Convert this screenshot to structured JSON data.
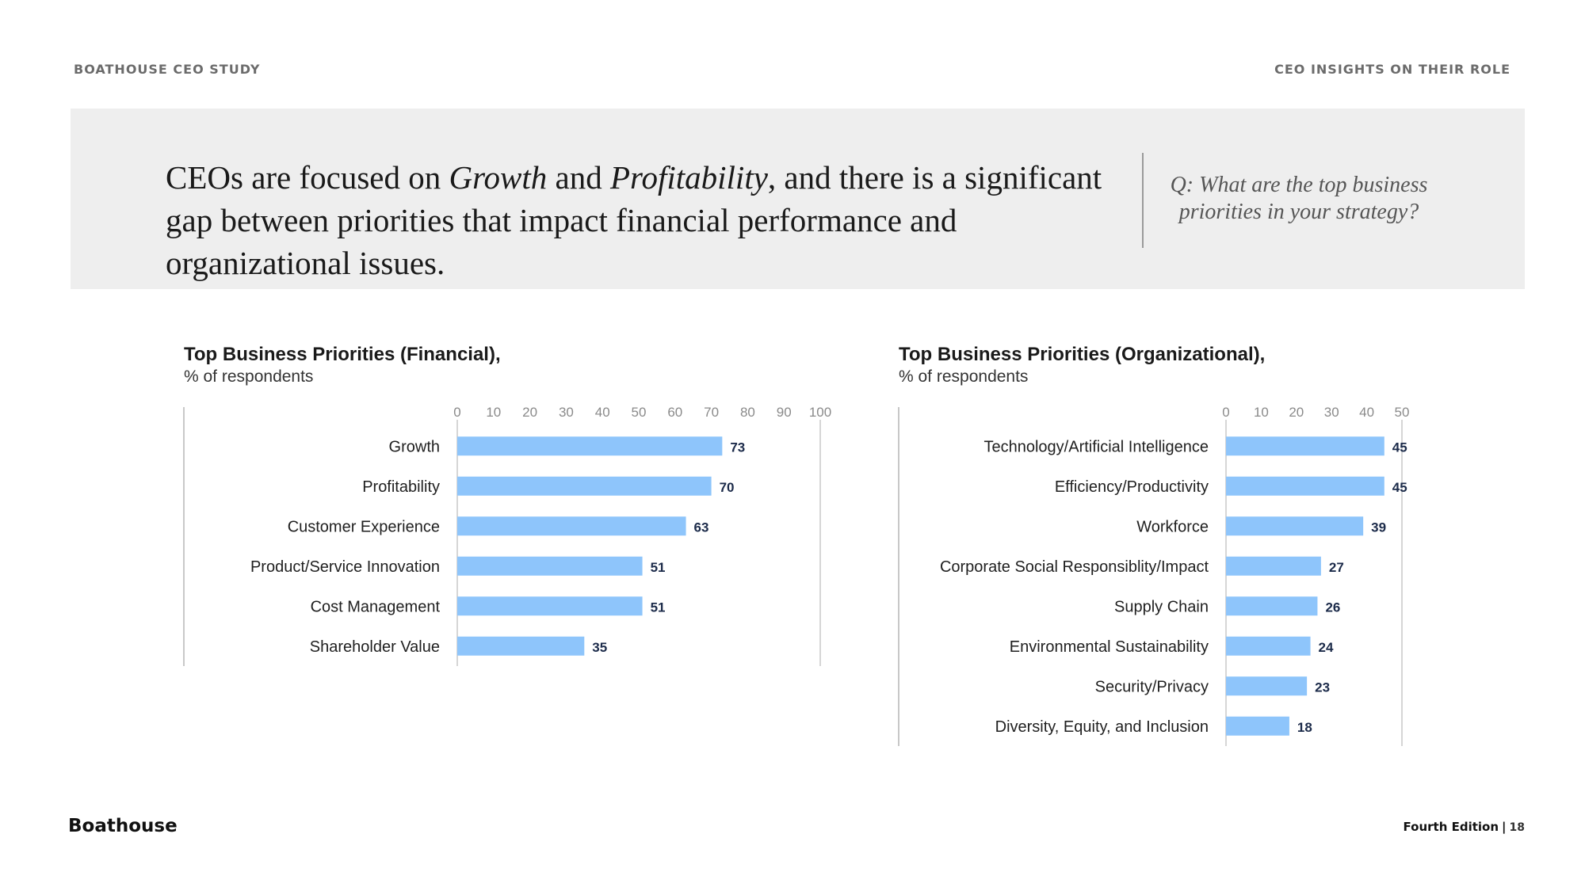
{
  "header": {
    "study": "BOATHOUSE CEO STUDY",
    "section": "CEO INSIGHTS ON THEIR ROLE"
  },
  "banner": {
    "headline_part1": "CEOs are focused on ",
    "headline_em1": "Growth",
    "headline_part2": " and ",
    "headline_em2": "Profitability",
    "headline_part3": ", and there is a significant gap between priorities that impact financial performance and organizational issues.",
    "question": "Q: What are the top business priorities in your strategy?"
  },
  "footer": {
    "brand": "Boathouse",
    "edition": "Fourth Edition",
    "separator": "|",
    "page": "18"
  },
  "colors": {
    "bar": "#8ec5fb",
    "axis": "#c8c8c8"
  },
  "chart_data": [
    {
      "type": "bar",
      "orientation": "horizontal",
      "title": "Top Business Priorities (Financial),",
      "subtitle": "% of respondents",
      "categories": [
        "Growth",
        "Profitability",
        "Customer Experience",
        "Product/Service Innovation",
        "Cost Management",
        "Shareholder Value"
      ],
      "values": [
        73,
        70,
        63,
        51,
        51,
        35
      ],
      "xlim": [
        0,
        100
      ],
      "ticks": [
        0,
        10,
        20,
        30,
        40,
        50,
        60,
        70,
        80,
        90,
        100
      ],
      "grid": false,
      "axis_position": "top"
    },
    {
      "type": "bar",
      "orientation": "horizontal",
      "title": "Top Business Priorities (Organizational),",
      "subtitle": "% of respondents",
      "categories": [
        "Technology/Artificial Intelligence",
        "Efficiency/Productivity",
        "Workforce",
        "Corporate Social Responsiblity/Impact",
        "Supply Chain",
        "Environmental Sustainability",
        "Security/Privacy",
        "Diversity, Equity, and Inclusion"
      ],
      "values": [
        45,
        45,
        39,
        27,
        26,
        24,
        23,
        18
      ],
      "xlim": [
        0,
        50
      ],
      "ticks": [
        0,
        10,
        20,
        30,
        40,
        50
      ],
      "grid": false,
      "axis_position": "top"
    }
  ]
}
